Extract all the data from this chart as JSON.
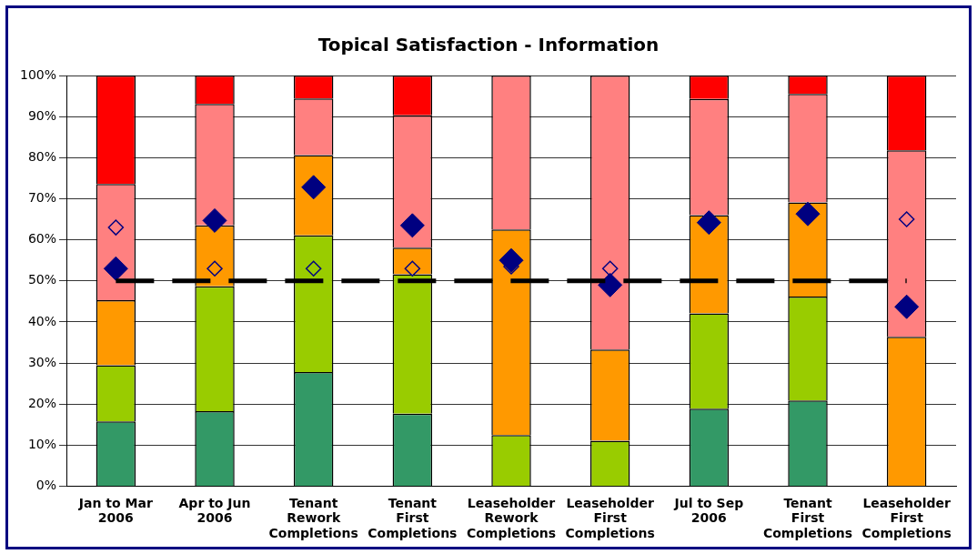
{
  "chart_data": {
    "type": "bar",
    "title": "Topical Satisfaction - Information",
    "stacked": true,
    "categories": [
      "Jan to Mar\n2006",
      "Apr to Jun\n2006",
      "Tenant\nRework\nCompletions",
      "Tenant\nFirst\nCompletions",
      "Leaseholder\nRework\nCompletions",
      "Leaseholder\nFirst\nCompletions",
      "Jul to Sep\n2006",
      "Tenant\nFirst\nCompletions",
      "Leaseholder\nFirst\nCompletions"
    ],
    "series": [
      {
        "color": "#339966",
        "values": [
          15.8,
          18.3,
          27.8,
          17.7,
          0,
          0,
          18.9,
          20.9,
          0
        ]
      },
      {
        "color": "#99cc00",
        "values": [
          13.7,
          30.4,
          33.3,
          33.9,
          12.5,
          11.1,
          23.2,
          25.3,
          0
        ]
      },
      {
        "color": "#ff9900",
        "values": [
          15.8,
          14.8,
          19.5,
          6.5,
          50,
          22.2,
          23.9,
          22.9,
          36.4
        ]
      },
      {
        "color": "#ff8080",
        "values": [
          28.3,
          29.6,
          13.8,
          32.2,
          37.5,
          66.7,
          28.3,
          26.4,
          45.4
        ]
      },
      {
        "color": "#ff0000",
        "values": [
          26.4,
          6.9,
          5.6,
          9.7,
          0,
          0,
          5.7,
          4.5,
          18.2
        ]
      },
      {
        "type": "scatter",
        "color": "#000080",
        "marker": "diamond",
        "values": [
          63,
          53,
          53,
          53,
          53.5,
          53,
          null,
          null,
          65
        ]
      },
      {
        "type": "scatter",
        "color": "#000080",
        "marker": "diamond",
        "values": [
          53,
          64.7,
          72.8,
          63.5,
          55,
          49,
          64.2,
          66.3,
          43.7
        ]
      }
    ],
    "ref_lines": [
      {
        "axis": "y",
        "value": 50,
        "color": "#000000",
        "line_style": "dashed"
      }
    ],
    "ylim": [
      0,
      100
    ],
    "yticks": [
      {
        "value": 0,
        "label": "0%"
      },
      {
        "value": 10,
        "label": "10%"
      },
      {
        "value": 20,
        "label": "20%"
      },
      {
        "value": 30,
        "label": "30%"
      },
      {
        "value": 40,
        "label": "40%"
      },
      {
        "value": 50,
        "label": "50%"
      },
      {
        "value": 60,
        "label": "60%"
      },
      {
        "value": 70,
        "label": "70%"
      },
      {
        "value": 80,
        "label": "80%"
      },
      {
        "value": 90,
        "label": "90%"
      },
      {
        "value": 100,
        "label": "100%"
      }
    ],
    "grid": "y",
    "legend": false
  }
}
